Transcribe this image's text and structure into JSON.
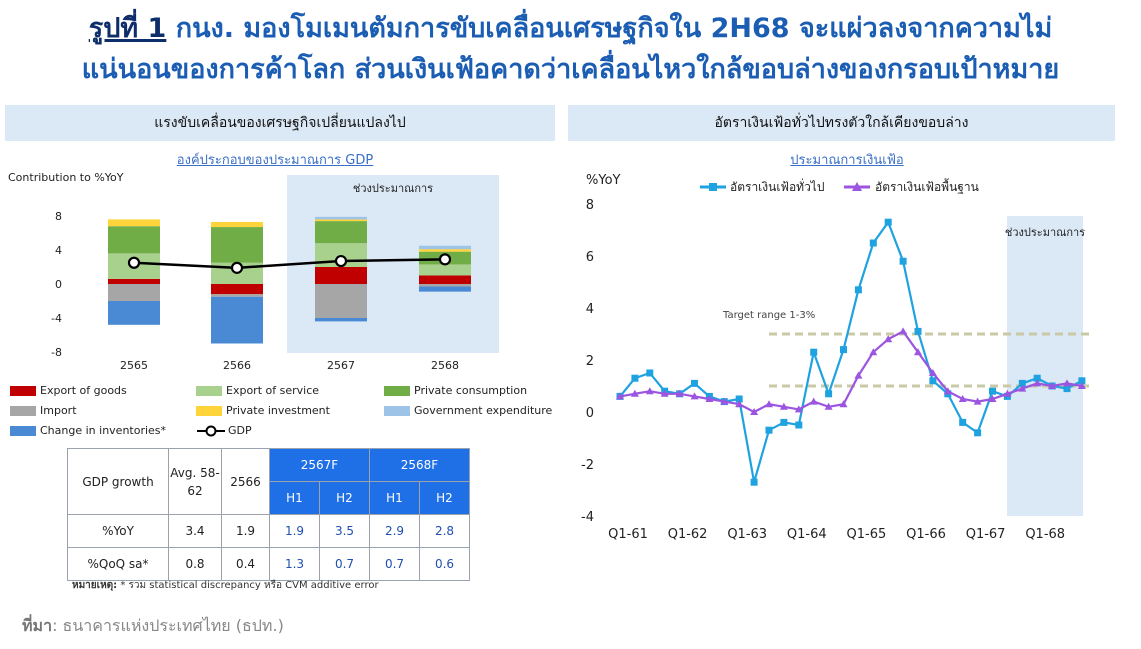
{
  "title": {
    "prefix": "รูปที่ 1",
    "line1": " กนง. มองโมเมนตัมการขับเคลื่อนเศรษฐกิจใน 2H68 จะแผ่วลงจากความไม่",
    "line2": "แน่นอนของการค้าโลก ส่วนเงินเฟ้อคาดว่าเคลื่อนไหวใกล้ขอบล่างของกรอบเป้าหมาย"
  },
  "left_panel": {
    "header": "แรงขับเคลื่อนของเศรษฐกิจเปลี่ยนแปลงไป",
    "subtitle": "องค์ประกอบของประมาณการ GDP",
    "ylabel": "Contribution to %YoY",
    "forecast_label": "ช่วงประมาณการ",
    "legend": [
      {
        "label": "Export of goods",
        "color": "#c00000"
      },
      {
        "label": "Export of service",
        "color": "#a9d18e"
      },
      {
        "label": "Private consumption",
        "color": "#70ad47"
      },
      {
        "label": "Import",
        "color": "#a6a6a6"
      },
      {
        "label": "Private investment",
        "color": "#ffd33a"
      },
      {
        "label": "Government expenditure",
        "color": "#9dc3e6"
      },
      {
        "label": "Change in inventories*",
        "color": "#4a8ad4"
      },
      {
        "label": "GDP",
        "color": "#000000"
      }
    ]
  },
  "chart_data": [
    {
      "type": "bar",
      "stacked": true,
      "categories": [
        "2565",
        "2566",
        "2567",
        "2568"
      ],
      "ylim": [
        -8,
        8
      ],
      "yticks": [
        8,
        4,
        0,
        -4,
        -8
      ],
      "series": [
        {
          "name": "Export of goods",
          "values": [
            0.6,
            -1.2,
            2.0,
            1.0
          ]
        },
        {
          "name": "Export of service",
          "values": [
            3.0,
            2.5,
            2.8,
            1.3
          ]
        },
        {
          "name": "Private consumption",
          "values": [
            3.2,
            4.2,
            2.6,
            1.5
          ]
        },
        {
          "name": "Private investment",
          "values": [
            0.8,
            0.6,
            0.2,
            0.3
          ]
        },
        {
          "name": "Government expenditure",
          "values": [
            0,
            0,
            0.3,
            0.4
          ]
        },
        {
          "name": "Import",
          "values": [
            -2.0,
            -0.3,
            -4.0,
            -0.3
          ]
        },
        {
          "name": "Change in inventories*",
          "values": [
            -2.8,
            -5.5,
            -0.4,
            -0.6
          ]
        }
      ],
      "gdp": [
        2.5,
        1.9,
        2.7,
        2.9
      ]
    },
    {
      "type": "line",
      "x_ticks": [
        "Q1-61",
        "Q1-62",
        "Q1-63",
        "Q1-64",
        "Q1-65",
        "Q1-66",
        "Q1-67",
        "Q1-68"
      ],
      "ylim": [
        -4,
        8
      ],
      "yticks": [
        8,
        6,
        4,
        2,
        0,
        -2,
        -4
      ],
      "ylabel": "%YoY",
      "target_label": "Target range 1-3%",
      "target_range": [
        1,
        3
      ],
      "forecast_label": "ช่วงประมาณการ",
      "series": [
        {
          "name": "อัตราเงินเฟ้อทั่วไป",
          "color": "#1fa2e0",
          "values": [
            0.6,
            1.3,
            1.5,
            0.8,
            0.7,
            1.1,
            0.6,
            0.4,
            0.5,
            -2.7,
            -0.7,
            -0.4,
            -0.5,
            2.3,
            0.7,
            2.4,
            4.7,
            6.5,
            7.3,
            5.8,
            3.1,
            1.2,
            0.7,
            -0.4,
            -0.8,
            0.8,
            0.6,
            1.1,
            1.3,
            1.0,
            0.9,
            1.2
          ]
        },
        {
          "name": "อัตราเงินเฟ้อพื้นฐาน",
          "color": "#9b55e0",
          "values": [
            0.6,
            0.7,
            0.8,
            0.7,
            0.7,
            0.6,
            0.5,
            0.4,
            0.3,
            0.0,
            0.3,
            0.2,
            0.1,
            0.4,
            0.2,
            0.3,
            1.4,
            2.3,
            2.8,
            3.1,
            2.3,
            1.5,
            0.8,
            0.5,
            0.4,
            0.5,
            0.7,
            0.9,
            1.1,
            1.0,
            1.1,
            1.0
          ]
        }
      ]
    }
  ],
  "right_panel": {
    "header": "อัตราเงินเฟ้อทั่วไปทรงตัวใกล้เคียงขอบล่าง",
    "subtitle": "ประมาณการเงินเฟ้อ",
    "ylabel": "%YoY"
  },
  "table": {
    "col_header": "GDP growth",
    "avg_header": "Avg. 58-62",
    "y2566_header": "2566",
    "f2567_header": "2567F",
    "f2568_header": "2568F",
    "h1": "H1",
    "h2": "H2",
    "rows": [
      {
        "label": "%YoY",
        "avg": "3.4",
        "y2566": "1.9",
        "f67h1": "1.9",
        "f67h2": "3.5",
        "f68h1": "2.9",
        "f68h2": "2.8"
      },
      {
        "label": "%QoQ sa*",
        "avg": "0.8",
        "y2566": "0.4",
        "f67h1": "1.3",
        "f67h2": "0.7",
        "f68h1": "0.7",
        "f68h2": "0.6"
      }
    ]
  },
  "note": {
    "label": "หมายเหตุ:",
    "text": " * รวม statistical discrepancy หรือ CVM additive error"
  },
  "source": {
    "label": "ที่มา",
    "text": ": ธนาคารแห่งประเทศไทย (ธปท.)"
  }
}
